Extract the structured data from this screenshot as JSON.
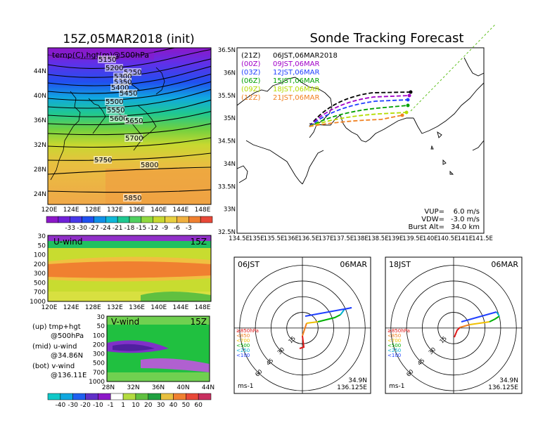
{
  "left_title": "15Z,05MAR2018 (init)",
  "right_title": "Sonde Tracking Forecast",
  "map500": {
    "label": "temp(C),hgt(m)@500hPa",
    "lat_ticks": [
      "44N",
      "40N",
      "36N",
      "32N",
      "28N",
      "24N"
    ],
    "lon_ticks": [
      "120E",
      "124E",
      "128E",
      "132E",
      "136E",
      "140E",
      "144E",
      "148E"
    ],
    "contours": [
      "5150",
      "5200",
      "5250",
      "5300",
      "5350",
      "5400",
      "5450",
      "5500",
      "5550",
      "5600",
      "5650",
      "5700",
      "5750",
      "5800",
      "5850"
    ],
    "colorbar_ticks": [
      "-33",
      "-30",
      "-27",
      "-24",
      "-21",
      "-18",
      "-15",
      "-12",
      "-9",
      "-6",
      "-3"
    ]
  },
  "uwind": {
    "label": "U-wind",
    "time": "15Z",
    "p_ticks": [
      "30",
      "50",
      "100",
      "200",
      "300",
      "500",
      "700",
      "1000"
    ],
    "lon_ticks": [
      "120E",
      "124E",
      "128E",
      "132E",
      "136E",
      "140E",
      "144E",
      "148E"
    ]
  },
  "vwind": {
    "label": "V-wind",
    "time": "15Z",
    "p_ticks": [
      "30",
      "50",
      "100",
      "200",
      "300",
      "500",
      "700",
      "1000"
    ],
    "lat_ticks": [
      "28N",
      "32N",
      "36N",
      "40N",
      "44N"
    ]
  },
  "notes": [
    {
      "a": "(up)  tmp+hgt",
      "b": "@500hPa"
    },
    {
      "a": "(mid)  u-wind",
      "b": "@34.86N"
    },
    {
      "a": "(bot)  v-wind",
      "b": "@136.11E"
    }
  ],
  "wind_colorbar_ticks": [
    "-40",
    "-30",
    "-20",
    "-10",
    "-1",
    "1",
    "10",
    "20",
    "30",
    "40",
    "50",
    "60"
  ],
  "track": {
    "lat_ticks": [
      "36.5N",
      "36N",
      "35.5N",
      "35N",
      "34.5N",
      "34N",
      "33.5N",
      "33N",
      "32.5N"
    ],
    "lon_ticks": [
      "134.5E",
      "135E",
      "135.5E",
      "136E",
      "136.5E",
      "137E",
      "137.5E",
      "138E",
      "138.5E",
      "139E",
      "139.5E",
      "140E",
      "140.5E",
      "141E",
      "141.5E"
    ],
    "legend": [
      {
        "a": "(21Z)",
        "b": "06JST,06MAR2018",
        "color": "#000000"
      },
      {
        "a": "(00Z)",
        "b": "09JST,06MAR",
        "color": "#a000c8"
      },
      {
        "a": "(03Z)",
        "b": "12JST,06MAR",
        "color": "#2040ff"
      },
      {
        "a": "(06Z)",
        "b": "15JST,06MAR",
        "color": "#00a000"
      },
      {
        "a": "(09Z)",
        "b": "18JST,06MAR",
        "color": "#b4dc00"
      },
      {
        "a": "(12Z)",
        "b": "21JST,06MAR",
        "color": "#f08020"
      }
    ],
    "params": [
      {
        "k": "VUP=",
        "v": "6.0 m/s"
      },
      {
        "k": "VDW=",
        "v": "-3.0 m/s"
      },
      {
        "k": "Burst Alt=",
        "v": "34.0 km"
      }
    ]
  },
  "hodographs": [
    {
      "time": "06JST",
      "date": "06MAR",
      "lat": "34.9N",
      "lon": "136.125E",
      "unit": "ms-1",
      "rings": [
        "15",
        "30",
        "45",
        "60"
      ]
    },
    {
      "time": "18JST",
      "date": "06MAR",
      "lat": "34.9N",
      "lon": "136.125E",
      "unit": "ms-1",
      "rings": [
        "15",
        "30",
        "45",
        "60"
      ]
    }
  ],
  "hodo_legend": [
    {
      "t": "≥850hPa",
      "c": "#e01818"
    },
    {
      "t": "<850",
      "c": "#f08020"
    },
    {
      "t": "<700",
      "c": "#f0c000"
    },
    {
      "t": "<500",
      "c": "#00b000"
    },
    {
      "t": "<250",
      "c": "#00b0d0"
    },
    {
      "t": "<100",
      "c": "#2040ff"
    }
  ]
}
